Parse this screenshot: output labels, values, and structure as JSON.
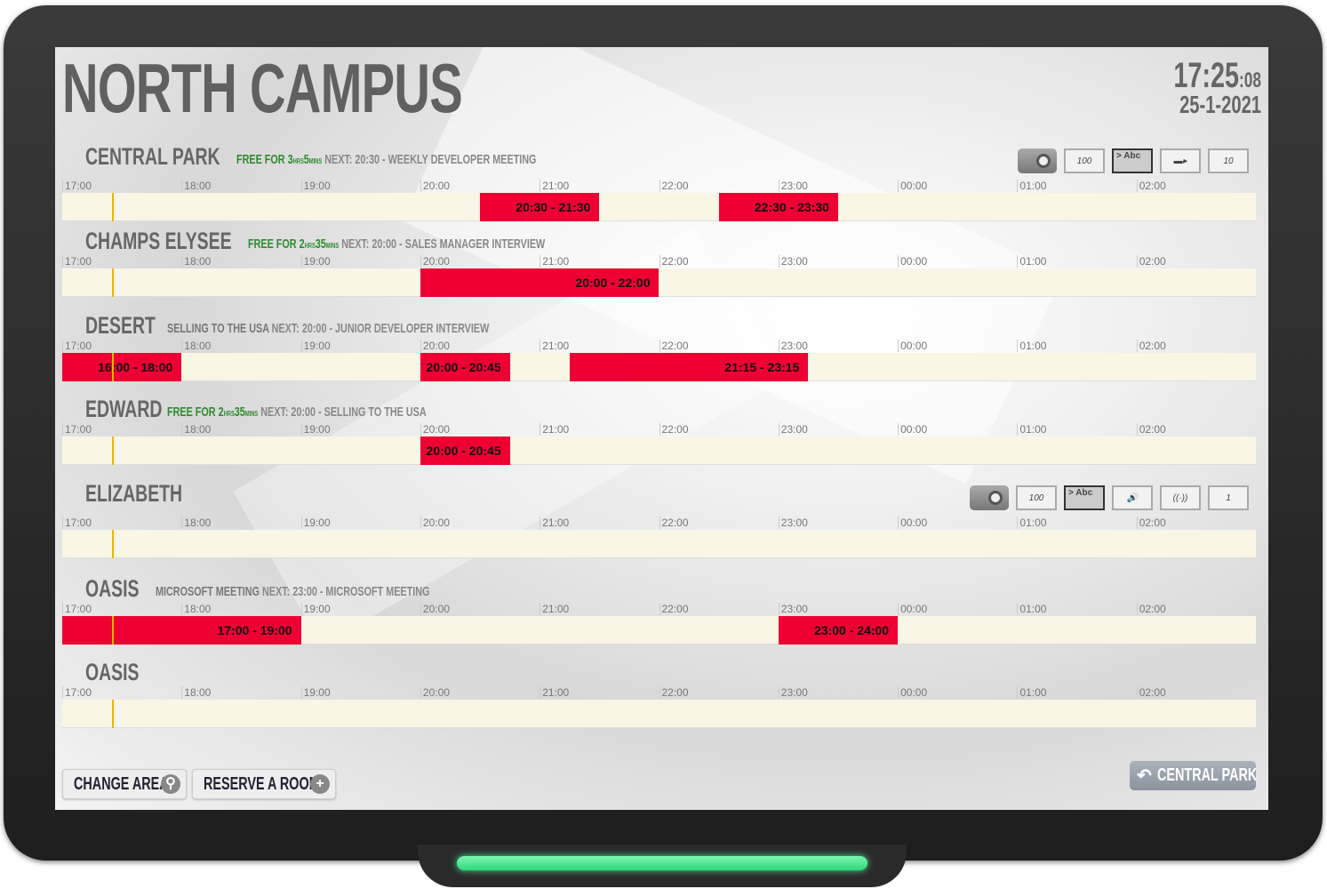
{
  "header": {
    "title": "NORTH CAMPUS",
    "time": "17:25",
    "seconds": ":08",
    "date": "25-1-2021"
  },
  "timeline": {
    "ticks": [
      "17:00",
      "18:00",
      "19:00",
      "20:00",
      "21:00",
      "22:00",
      "23:00",
      "00:00",
      "01:00",
      "02:00"
    ],
    "now": "17:25"
  },
  "colors": {
    "booked": "#ee0033",
    "free_text": "#2e8b2e",
    "track": "#f9f6e6",
    "now_line": "#f0b400"
  },
  "rooms": [
    {
      "name": "CENTRAL PARK",
      "free": {
        "label": "FREE FOR",
        "hours": "3",
        "hrs": "HRS",
        "mins": "5",
        "mins_unit": "MINS"
      },
      "next": "NEXT: 20:30 - WEEKLY DEVELOPER MEETING",
      "bookings": [
        {
          "start": "20:30",
          "end": "21:30",
          "label": "20:30 - 21:30"
        },
        {
          "start": "22:30",
          "end": "23:30",
          "label": "22:30 - 23:30"
        }
      ],
      "amenities": [
        {
          "icon": "projector-icon"
        },
        {
          "icon": "whiteboard-icon",
          "text": "100"
        },
        {
          "icon": "display-icon",
          "text": "> Abc"
        },
        {
          "icon": "video-camera-icon"
        },
        {
          "icon": "capacity-icon",
          "text": "10"
        }
      ]
    },
    {
      "name": "CHAMPS ELYSEE",
      "free": {
        "label": "FREE FOR",
        "hours": "2",
        "hrs": "HRS",
        "mins": "35",
        "mins_unit": "MINS"
      },
      "next": "NEXT: 20:00 - SALES MANAGER INTERVIEW",
      "bookings": [
        {
          "start": "20:00",
          "end": "22:00",
          "label": "20:00 - 22:00"
        }
      ]
    },
    {
      "name": "DESERT",
      "current": "SELLING TO THE USA",
      "next": "NEXT: 20:00 - JUNIOR DEVELOPER INTERVIEW",
      "bookings": [
        {
          "start": "16:00",
          "end": "18:00",
          "label": "16:00 - 18:00"
        },
        {
          "start": "20:00",
          "end": "20:45",
          "label": "20:00 - 20:45"
        },
        {
          "start": "21:15",
          "end": "23:15",
          "label": "21:15 - 23:15"
        }
      ]
    },
    {
      "name": "EDWARD",
      "free": {
        "label": "FREE FOR",
        "hours": "2",
        "hrs": "HRS",
        "mins": "35",
        "mins_unit": "MINS"
      },
      "next": "NEXT: 20:00 - SELLING TO THE USA",
      "bookings": [
        {
          "start": "20:00",
          "end": "20:45",
          "label": "20:00 - 20:45"
        }
      ]
    },
    {
      "name": "ELIZABETH",
      "bookings": [],
      "amenities": [
        {
          "icon": "projector-icon"
        },
        {
          "icon": "whiteboard-icon",
          "text": "100"
        },
        {
          "icon": "display-icon",
          "text": "> Abc"
        },
        {
          "icon": "speaker-icon",
          "text": "🔊"
        },
        {
          "icon": "wifi-icon",
          "text": "((·))"
        },
        {
          "icon": "capacity-icon",
          "text": "1"
        }
      ]
    },
    {
      "name": "OASIS",
      "current": "MICROSOFT MEETING",
      "next": "NEXT: 23:00 - MICROSOFT MEETING",
      "bookings": [
        {
          "start": "17:00",
          "end": "19:00",
          "label": "17:00 - 19:00"
        },
        {
          "start": "23:00",
          "end": "24:00",
          "label": "23:00 - 24:00"
        }
      ]
    },
    {
      "name": "OASIS",
      "bookings": []
    }
  ],
  "footer": {
    "change_area": "CHANGE AREA",
    "reserve": "RESERVE A ROOM",
    "back": "CENTRAL PARK"
  }
}
